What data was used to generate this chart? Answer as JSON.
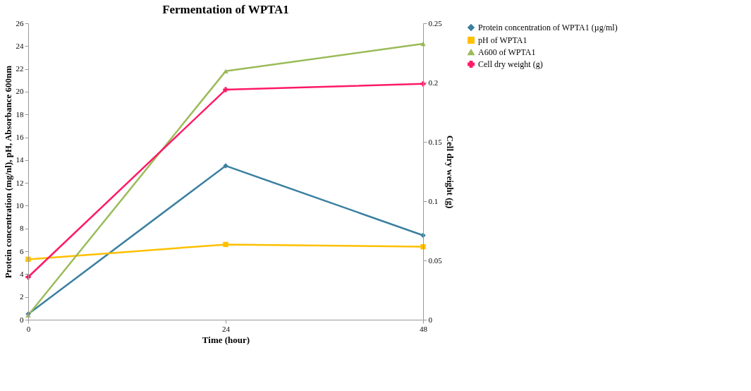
{
  "chart_data": {
    "type": "line",
    "title": "Fermentation of WPTA1",
    "xlabel": "Time (hour)",
    "ylabel": "Protein concentration (mg/nl), pH, Absorbance 600nm",
    "y2label": "Cell dry weight (g)",
    "x": [
      0,
      24,
      48
    ],
    "xlim": [
      0,
      48
    ],
    "xticks": [
      0,
      24,
      48
    ],
    "ylim": [
      0,
      26
    ],
    "yticks": [
      0,
      2,
      4,
      6,
      8,
      10,
      12,
      14,
      16,
      18,
      20,
      22,
      24,
      26
    ],
    "y2lim": [
      0,
      0.25
    ],
    "y2ticks": [
      0,
      0.05,
      0.1,
      0.15,
      0.2,
      0.25
    ],
    "grid": false,
    "legend": "right",
    "line_style": "solid",
    "series": [
      {
        "name": "Protein concentration of WPTA1 (µg/ml)",
        "color": "#3a80a0",
        "marker": "diamond",
        "values": [
          0.5,
          13.5,
          7.4
        ]
      },
      {
        "name": "pH of WPTA1",
        "color": "#ffc000",
        "marker": "square",
        "values": [
          5.3,
          6.6,
          6.4
        ]
      },
      {
        "name": "A600 of WPTA1",
        "color": "#9bbb59",
        "marker": "triangle",
        "values": [
          0.4,
          21.8,
          24.2
        ]
      },
      {
        "name": "Cell dry weight (g)",
        "color": "#ff1a66",
        "marker": "cross",
        "axis": "y2",
        "values": [
          0.036,
          0.194,
          0.199
        ]
      }
    ]
  }
}
